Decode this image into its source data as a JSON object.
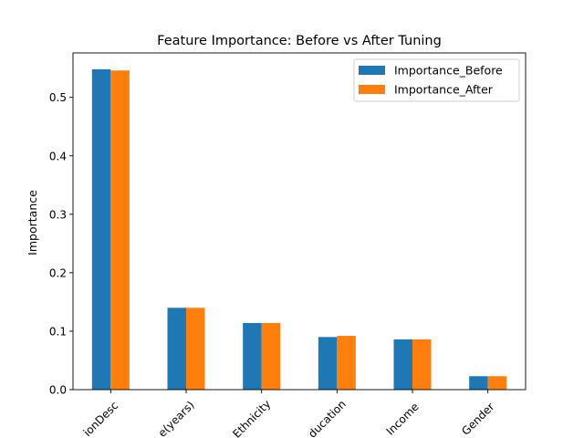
{
  "chart_data": {
    "type": "bar",
    "title": "Feature Importance: Before vs After Tuning",
    "xlabel": "",
    "ylabel": "Importance",
    "categories": [
      "ionDesc",
      "e(years)",
      "Ethnicity",
      "ducation",
      "Income",
      "Gender"
    ],
    "series": [
      {
        "name": "Importance_Before",
        "color": "#1f77b4",
        "values": [
          0.548,
          0.14,
          0.114,
          0.09,
          0.086,
          0.023
        ]
      },
      {
        "name": "Importance_After",
        "color": "#ff7f0e",
        "values": [
          0.546,
          0.14,
          0.114,
          0.092,
          0.086,
          0.023
        ]
      }
    ],
    "ylim": [
      0,
      0.576
    ],
    "yticks": [
      0.0,
      0.1,
      0.2,
      0.3,
      0.4,
      0.5
    ],
    "ytick_labels": [
      "0.0",
      "0.1",
      "0.2",
      "0.3",
      "0.4",
      "0.5"
    ],
    "grid": false,
    "legend_position": "top-right",
    "xtick_rotation_deg": 45
  }
}
